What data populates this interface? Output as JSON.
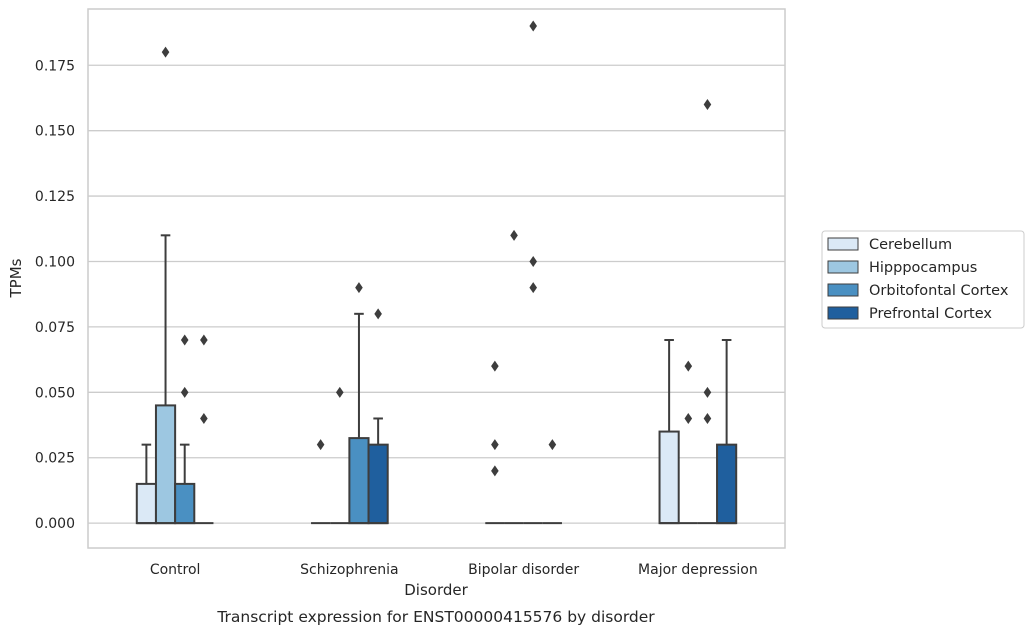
{
  "caption": "Transcript expression for ENST00000415576 by disorder",
  "chart_data": {
    "type": "box",
    "xlabel": "Disorder",
    "ylabel": "TPMs",
    "ylim": [
      -0.0095,
      0.1965
    ],
    "yticks": [
      "0.000",
      "0.025",
      "0.050",
      "0.075",
      "0.100",
      "0.125",
      "0.150",
      "0.175"
    ],
    "grid": true,
    "legend_position": "right",
    "categories": [
      "Control",
      "Schizophrenia",
      "Bipolar disorder",
      "Major depression"
    ],
    "series": [
      {
        "name": "Cerebellum",
        "color": "#dbe9f6",
        "boxes": [
          {
            "min": 0,
            "q1": 0,
            "median": 0,
            "q3": 0.015,
            "max": 0.03,
            "outliers": []
          },
          {
            "min": 0,
            "q1": 0,
            "median": 0,
            "q3": 0,
            "max": 0,
            "outliers": [
              0.03
            ]
          },
          {
            "min": 0,
            "q1": 0,
            "median": 0,
            "q3": 0,
            "max": 0,
            "outliers": [
              0.02,
              0.03,
              0.06
            ]
          },
          {
            "min": 0,
            "q1": 0,
            "median": 0,
            "q3": 0.035,
            "max": 0.07,
            "outliers": []
          }
        ]
      },
      {
        "name": "Hipppocampus",
        "color": "#9dc7e1",
        "boxes": [
          {
            "min": 0,
            "q1": 0,
            "median": 0,
            "q3": 0.045,
            "max": 0.11,
            "outliers": [
              0.18
            ]
          },
          {
            "min": 0,
            "q1": 0,
            "median": 0,
            "q3": 0,
            "max": 0,
            "outliers": [
              0.05
            ]
          },
          {
            "min": 0,
            "q1": 0,
            "median": 0,
            "q3": 0,
            "max": 0,
            "outliers": [
              0.11
            ]
          },
          {
            "min": 0,
            "q1": 0,
            "median": 0,
            "q3": 0,
            "max": 0,
            "outliers": [
              0.04,
              0.06
            ]
          }
        ]
      },
      {
        "name": "Orbitofontal Cortex",
        "color": "#4a90c2",
        "boxes": [
          {
            "min": 0,
            "q1": 0,
            "median": 0,
            "q3": 0.015,
            "max": 0.03,
            "outliers": [
              0.05,
              0.07
            ]
          },
          {
            "min": 0,
            "q1": 0,
            "median": 0,
            "q3": 0.0325,
            "max": 0.08,
            "outliers": [
              0.09
            ]
          },
          {
            "min": 0,
            "q1": 0,
            "median": 0,
            "q3": 0,
            "max": 0,
            "outliers": [
              0.09,
              0.1,
              0.19
            ]
          },
          {
            "min": 0,
            "q1": 0,
            "median": 0,
            "q3": 0,
            "max": 0,
            "outliers": [
              0.04,
              0.05,
              0.16
            ]
          }
        ]
      },
      {
        "name": "Prefrontal Cortex",
        "color": "#1f5f9e",
        "boxes": [
          {
            "min": 0,
            "q1": 0,
            "median": 0,
            "q3": 0,
            "max": 0,
            "outliers": [
              0.04,
              0.07
            ]
          },
          {
            "min": 0,
            "q1": 0,
            "median": 0,
            "q3": 0.03,
            "max": 0.04,
            "outliers": [
              0.08
            ]
          },
          {
            "min": 0,
            "q1": 0,
            "median": 0,
            "q3": 0,
            "max": 0,
            "outliers": [
              0.03
            ]
          },
          {
            "min": 0,
            "q1": 0,
            "median": 0,
            "q3": 0.03,
            "max": 0.07,
            "outliers": []
          }
        ]
      }
    ]
  }
}
